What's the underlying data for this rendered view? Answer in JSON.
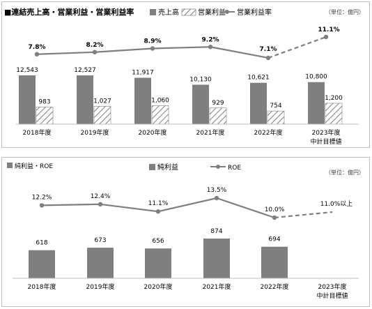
{
  "chart_data": [
    {
      "type": "bar",
      "title": "■連結売上高・営業利益・営業利益率",
      "unit_note": "（単位：億円）",
      "categories": [
        "2018年度",
        "2019年度",
        "2020年度",
        "2021年度",
        "2022年度",
        "2023年度"
      ],
      "category_sublabels": [
        "",
        "",
        "",
        "",
        "",
        "中計目標値"
      ],
      "series": [
        {
          "name": "売上高",
          "type": "bar",
          "color": "#7f7f7f",
          "values": [
            12543,
            12527,
            11917,
            10130,
            10621,
            10800
          ],
          "labels": [
            "12,543",
            "12,527",
            "11,917",
            "10,130",
            "10,621",
            "10,800"
          ]
        },
        {
          "name": "営業利益",
          "type": "bar",
          "pattern": "diagonal-hatch",
          "values": [
            983,
            1027,
            1060,
            929,
            754,
            1200
          ],
          "labels": [
            "983",
            "1,027",
            "1,060",
            "929",
            "754",
            "1,200"
          ]
        },
        {
          "name": "営業利益率",
          "type": "line",
          "color": "#7f7f7f",
          "values": [
            7.8,
            8.2,
            8.9,
            9.2,
            7.1,
            11.1
          ],
          "labels": [
            "7.8%",
            "8.2%",
            "8.9%",
            "9.2%",
            "7.1%",
            "11.1%"
          ],
          "dashed_last_segment": true
        }
      ],
      "legend_position": "top",
      "grid": false
    },
    {
      "type": "bar",
      "title": "純利益・ROE",
      "unit_note": "（単位：億円）",
      "categories": [
        "2018年度",
        "2019年度",
        "2020年度",
        "2021年度",
        "2022年度",
        "2023年度"
      ],
      "category_sublabels": [
        "",
        "",
        "",
        "",
        "",
        "中計目標値"
      ],
      "series": [
        {
          "name": "純利益",
          "type": "bar",
          "color": "#7f7f7f",
          "values": [
            618,
            673,
            656,
            874,
            694,
            null
          ],
          "labels": [
            "618",
            "673",
            "656",
            "874",
            "694",
            ""
          ]
        },
        {
          "name": "ROE",
          "type": "line",
          "color": "#7f7f7f",
          "values": [
            12.2,
            12.4,
            11.1,
            13.5,
            10.0,
            11.0
          ],
          "labels": [
            "12.2%",
            "12.4%",
            "11.1%",
            "13.5%",
            "10.0%",
            "11.0%以上"
          ],
          "dashed_last_segment": true
        }
      ],
      "legend_position": "top",
      "grid": false
    }
  ]
}
